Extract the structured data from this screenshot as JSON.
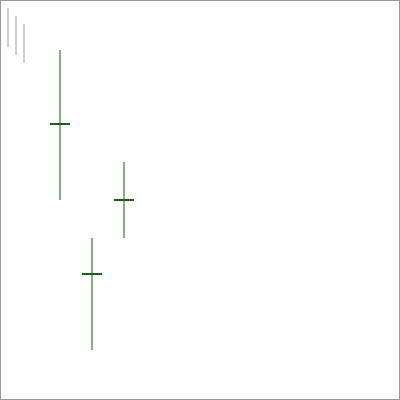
{
  "chart_data": {
    "type": "errorbar",
    "title": "",
    "xlabel": "",
    "ylabel": "",
    "grid": false,
    "legend": "none",
    "xlim": [
      0,
      10
    ],
    "ylim": [
      0,
      10
    ],
    "points": [
      {
        "x": 1.5,
        "y": 6.9,
        "low": 5.0,
        "high": 8.75
      },
      {
        "x": 2.3,
        "y": 3.15,
        "low": 1.25,
        "high": 4.05
      },
      {
        "x": 3.1,
        "y": 5.0,
        "low": 4.05,
        "high": 5.95
      }
    ],
    "colors": {
      "whisker": "#2e7d32",
      "point": "#1b5e20",
      "frame": "#9a9a9a",
      "legend_strokes": "#bdbdbd"
    },
    "legend_marks": [
      {
        "id": "legend-stroke-1"
      },
      {
        "id": "legend-stroke-2"
      },
      {
        "id": "legend-stroke-3"
      }
    ]
  }
}
